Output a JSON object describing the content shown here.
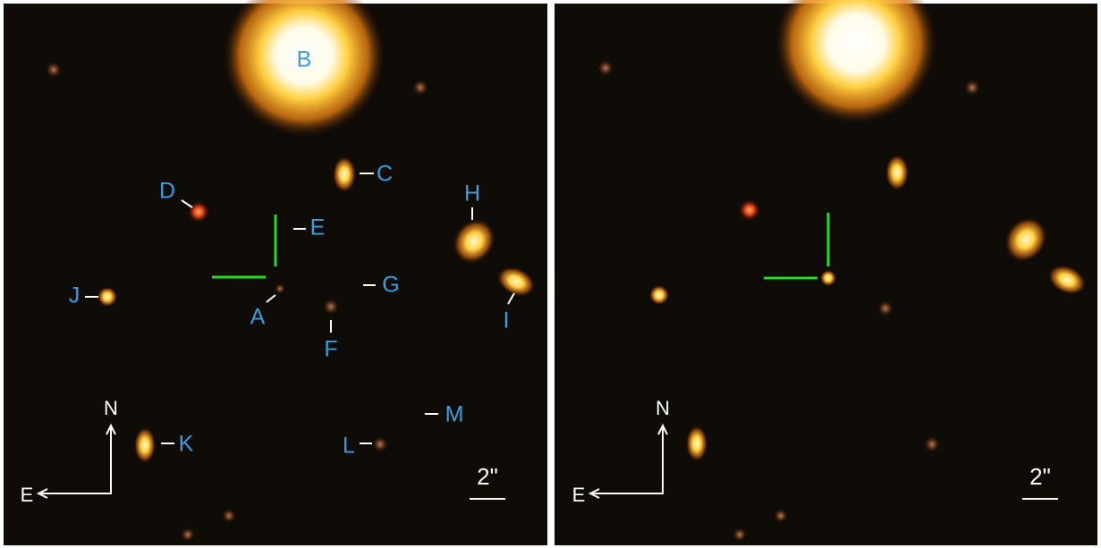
{
  "panels": [
    {
      "labels": [
        "B",
        "C",
        "D",
        "E",
        "H",
        "J",
        "A",
        "G",
        "F",
        "I",
        "K",
        "L",
        "M"
      ],
      "compass": {
        "north": "N",
        "east": "E"
      },
      "scale": "2\""
    },
    {
      "compass": {
        "north": "N",
        "east": "E"
      },
      "scale": "2\""
    }
  ]
}
